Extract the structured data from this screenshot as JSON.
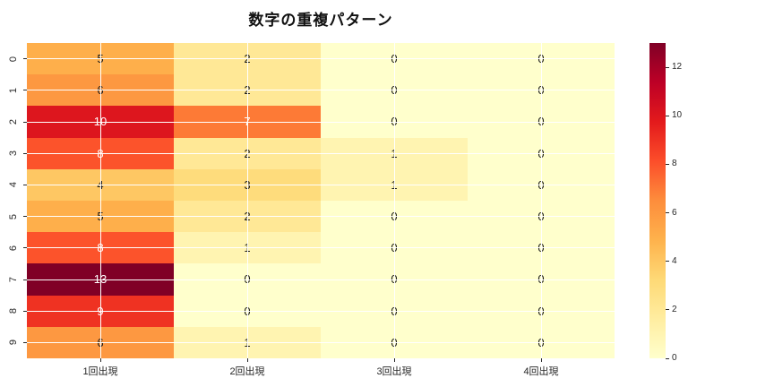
{
  "figure": {
    "background": "#ffffff"
  },
  "chart_data": {
    "type": "heatmap",
    "title": "数字の重複パターン",
    "xlabel": "",
    "ylabel": "",
    "x_tick_labels": [
      "1回出現",
      "2回出現",
      "3回出現",
      "4回出現"
    ],
    "y_tick_labels": [
      "0",
      "1",
      "2",
      "3",
      "4",
      "5",
      "6",
      "7",
      "8",
      "9"
    ],
    "values": [
      [
        5,
        2,
        0,
        0
      ],
      [
        6,
        2,
        0,
        0
      ],
      [
        10,
        7,
        0,
        0
      ],
      [
        8,
        2,
        1,
        0
      ],
      [
        4,
        3,
        1,
        0
      ],
      [
        5,
        2,
        0,
        0
      ],
      [
        8,
        1,
        0,
        0
      ],
      [
        13,
        0,
        0,
        0
      ],
      [
        9,
        0,
        0,
        0
      ],
      [
        6,
        1,
        0,
        0
      ]
    ],
    "vmin": 0,
    "vmax": 13,
    "annotated": true,
    "grid": true,
    "grid_color": "#ffffff",
    "colormap": {
      "name": "YlOrRd",
      "stops": [
        "#ffffcc",
        "#ffeda0",
        "#fed976",
        "#feb24c",
        "#fd8d3c",
        "#fc4e2a",
        "#e31a1c",
        "#bd0026",
        "#800026"
      ]
    },
    "annotation_colors": {
      "light": "#ffffff",
      "dark": "#1a1a1a"
    },
    "tick_color": "#262626",
    "colorbar": {
      "position": "right",
      "tick_values": [
        0,
        2,
        4,
        6,
        8,
        10,
        12
      ]
    }
  }
}
